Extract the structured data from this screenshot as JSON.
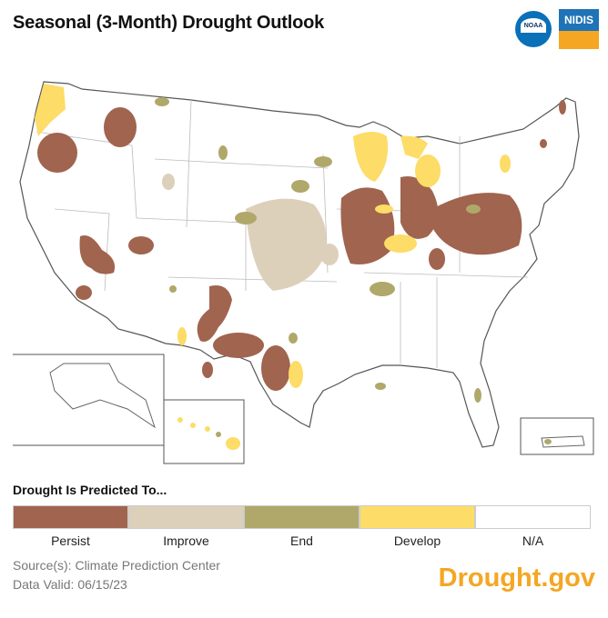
{
  "title": "Seasonal (3-Month) Drought Outlook",
  "logos": {
    "noaa": "NOAA",
    "nidis": "NIDIS"
  },
  "legend": {
    "title": "Drought Is Predicted To...",
    "items": [
      {
        "label": "Persist",
        "color": "#a0644f"
      },
      {
        "label": "Improve",
        "color": "#ddd0bb"
      },
      {
        "label": "End",
        "color": "#b0a86a"
      },
      {
        "label": "Develop",
        "color": "#fddc67"
      },
      {
        "label": "N/A",
        "color": "#ffffff"
      }
    ]
  },
  "source": "Source(s): Climate Prediction Center",
  "valid": "Data Valid: 06/15/23",
  "brand": "Drought.gov"
}
